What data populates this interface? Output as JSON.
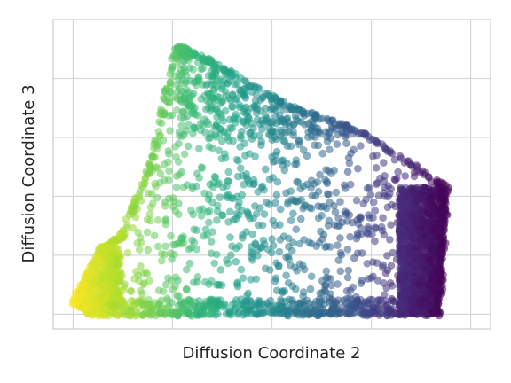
{
  "chart_data": {
    "type": "scatter",
    "title": "",
    "xlabel": "Diffusion Coordinate 2",
    "ylabel": "Diffusion Coordinate 3",
    "xlim": [
      -0.05,
      1.05
    ],
    "ylim": [
      -0.05,
      1.0
    ],
    "grid": true,
    "tick_labels_visible": false,
    "colormap": "viridis",
    "color_by": "x-position (yellow at left to dark purple at right)",
    "colormap_stops": [
      "#fde725",
      "#b5de2b",
      "#6ece58",
      "#35b779",
      "#1f9e89",
      "#26828e",
      "#31688e",
      "#3e4989",
      "#482878",
      "#440154"
    ],
    "marker_alpha": 0.55,
    "point_count_estimate": 2600,
    "boundary": [
      [
        0.0,
        0.04
      ],
      [
        0.07,
        0.22
      ],
      [
        0.12,
        0.26
      ],
      [
        0.2,
        0.52
      ],
      [
        0.26,
        0.91
      ],
      [
        0.34,
        0.86
      ],
      [
        0.55,
        0.7
      ],
      [
        0.72,
        0.62
      ],
      [
        0.94,
        0.43
      ],
      [
        0.92,
        0.0
      ],
      [
        0.62,
        0.0
      ],
      [
        0.28,
        0.0
      ],
      [
        0.05,
        0.0
      ]
    ],
    "dense_regions": [
      {
        "name": "right-edge",
        "x_range": [
          0.82,
          0.94
        ],
        "y_range": [
          0.0,
          0.43
        ],
        "density": "very-high"
      },
      {
        "name": "bottom-band",
        "x_range": [
          0.05,
          0.92
        ],
        "y_range": [
          0.0,
          0.05
        ],
        "density": "high"
      },
      {
        "name": "left-tip",
        "x_range": [
          0.0,
          0.12
        ],
        "y_range": [
          0.02,
          0.26
        ],
        "density": "high"
      },
      {
        "name": "top-ridge",
        "x_range": [
          0.26,
          0.72
        ],
        "y_range": [
          0.6,
          0.91
        ],
        "density": "medium"
      }
    ]
  }
}
